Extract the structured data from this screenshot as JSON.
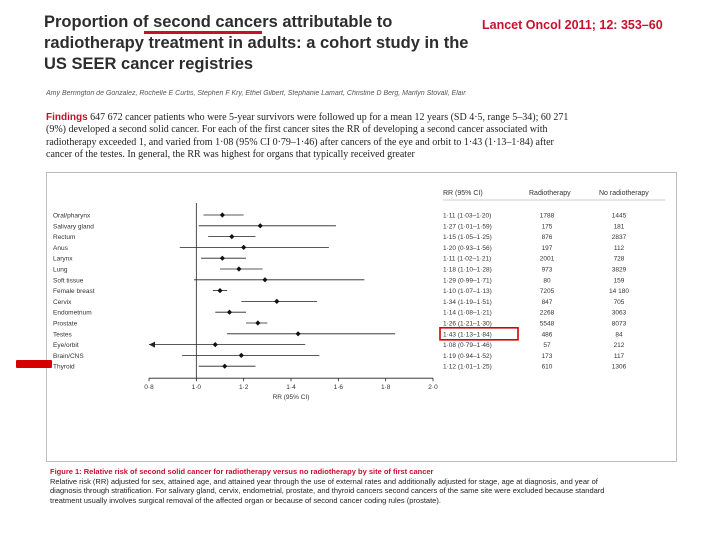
{
  "header": {
    "title": "Proportion of second cancers attributable to radiotherapy treatment in adults: a cohort study in the US SEER cancer registries",
    "citation": "Lancet Oncol 2011; 12: 353–60",
    "authors": "Amy Berrington de Gonzalez, Rochelle E Curtis, Stephen F Kry, Ethel Gilbert, Stephanie Lamart, Christine D Berg, Marilyn Stovall, Elaine Ron"
  },
  "findings": {
    "label": "Findings",
    "text": "647 672 cancer patients who were 5-year survivors were followed up for a mean 12 years (SD 4·5, range 5–34); 60 271 (9%) developed a second solid cancer. For each of the first cancer sites the RR of developing a second cancer associated with radiotherapy exceeded 1, and varied from 1·08 (95% CI 0·79–1·46) after cancers of the eye and orbit to 1·43 (1·13–1·84) after cancer of the testes. In general, the RR was highest for organs that typically received greater"
  },
  "chart_data": {
    "type": "forest",
    "columns": [
      "RR (95% CI)",
      "Radiotherapy",
      "No radiotherapy"
    ],
    "xlabel": "RR (95% CI)",
    "xlim": [
      0.8,
      2.0
    ],
    "xticks": [
      "0·8",
      "1·0",
      "1·2",
      "1·4",
      "1·6",
      "1·8",
      "2·0"
    ],
    "reference_line": 1.0,
    "highlighted_row": "Testes",
    "rows": [
      {
        "site": "Oral/pharynx",
        "rr": 1.11,
        "lo": 1.03,
        "hi": 1.2,
        "ci_text": "1·11 (1·03–1·20)",
        "radio": "1788",
        "noradio": "1445"
      },
      {
        "site": "Salivary gland",
        "rr": 1.27,
        "lo": 1.01,
        "hi": 1.59,
        "ci_text": "1·27 (1·01–1·59)",
        "radio": "175",
        "noradio": "181"
      },
      {
        "site": "Rectum",
        "rr": 1.15,
        "lo": 1.05,
        "hi": 1.25,
        "ci_text": "1·15 (1·05–1·25)",
        "radio": "876",
        "noradio": "2837"
      },
      {
        "site": "Anus",
        "rr": 1.2,
        "lo": 0.93,
        "hi": 1.56,
        "ci_text": "1·20 (0·93–1·56)",
        "radio": "197",
        "noradio": "112"
      },
      {
        "site": "Larynx",
        "rr": 1.11,
        "lo": 1.02,
        "hi": 1.21,
        "ci_text": "1·11 (1·02–1·21)",
        "radio": "2001",
        "noradio": "728"
      },
      {
        "site": "Lung",
        "rr": 1.18,
        "lo": 1.1,
        "hi": 1.28,
        "ci_text": "1·18 (1·10–1·28)",
        "radio": "973",
        "noradio": "3829"
      },
      {
        "site": "Soft tissue",
        "rr": 1.29,
        "lo": 0.99,
        "hi": 1.71,
        "ci_text": "1·29 (0·99–1·71)",
        "radio": "80",
        "noradio": "159"
      },
      {
        "site": "Female breast",
        "rr": 1.1,
        "lo": 1.07,
        "hi": 1.13,
        "ci_text": "1·10 (1·07–1·13)",
        "radio": "7205",
        "noradio": "14 180"
      },
      {
        "site": "Cervix",
        "rr": 1.34,
        "lo": 1.19,
        "hi": 1.51,
        "ci_text": "1·34 (1·19–1·51)",
        "radio": "847",
        "noradio": "705"
      },
      {
        "site": "Endometrium",
        "rr": 1.14,
        "lo": 1.08,
        "hi": 1.21,
        "ci_text": "1·14 (1·08–1·21)",
        "radio": "2268",
        "noradio": "3063"
      },
      {
        "site": "Prostate",
        "rr": 1.26,
        "lo": 1.21,
        "hi": 1.3,
        "ci_text": "1·26 (1·21–1·30)",
        "radio": "5548",
        "noradio": "8073"
      },
      {
        "site": "Testes",
        "rr": 1.43,
        "lo": 1.13,
        "hi": 1.84,
        "ci_text": "1·43 (1·13–1·84)",
        "radio": "486",
        "noradio": "84"
      },
      {
        "site": "Eye/orbit",
        "rr": 1.08,
        "lo": 0.79,
        "hi": 1.46,
        "ci_text": "1·08 (0·79–1·46)",
        "radio": "57",
        "noradio": "212"
      },
      {
        "site": "Brain/CNS",
        "rr": 1.19,
        "lo": 0.94,
        "hi": 1.52,
        "ci_text": "1·19 (0·94–1·52)",
        "radio": "173",
        "noradio": "117"
      },
      {
        "site": "Thyroid",
        "rr": 1.12,
        "lo": 1.01,
        "hi": 1.25,
        "ci_text": "1·12 (1·01–1·25)",
        "radio": "610",
        "noradio": "1306"
      }
    ]
  },
  "caption": {
    "title": "Figure 1: Relative risk of second solid cancer for radiotherapy versus no radiotherapy by site of first cancer",
    "text": "Relative risk (RR) adjusted for sex, attained age, and attained year through the use of external rates and additionally adjusted for stage, age at diagnosis, and year of diagnosis through stratification. For salivary gland, cervix, endometrial, prostate, and thyroid cancers second cancers of the same site were excluded because standard treatment usually involves surgical removal of the affected organ or because of second cancer coding rules (prostate)."
  },
  "colors": {
    "accent": "#c8102e",
    "marker": "#d50000",
    "highlight_box": "#d50000"
  }
}
